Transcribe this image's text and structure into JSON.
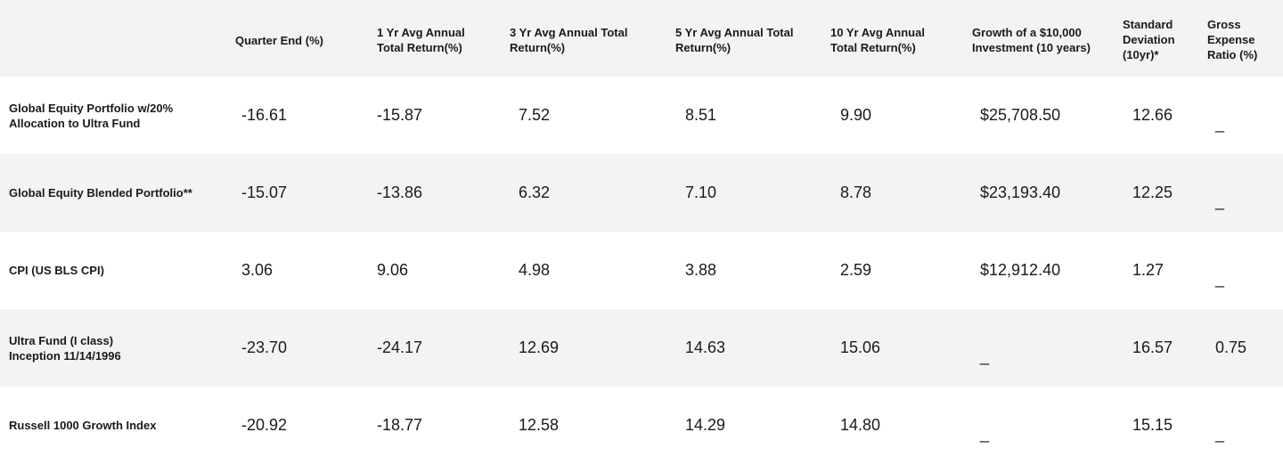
{
  "headers": [
    "Quarter End (%)",
    "1 Yr Avg Annual\nTotal Return(%)",
    "3 Yr Avg Annual Total\nReturn(%)",
    "5 Yr Avg Annual Total\nReturn(%)",
    "10 Yr Avg Annual\nTotal Return(%)",
    "Growth of a $10,000\nInvestment (10 years)",
    "Standard\nDeviation\n(10yr)*",
    "Gross\nExpense\nRatio (%)"
  ],
  "rows": [
    {
      "label_line1": "Global Equity Portfolio w/20%",
      "label_line2": "Allocation to Ultra Fund",
      "values": [
        "-16.61",
        "-15.87",
        "7.52",
        "8.51",
        "9.90",
        "$25,708.50",
        "12.66",
        "_"
      ]
    },
    {
      "label_line1": "Global Equity Blended Portfolio**",
      "label_line2": "",
      "values": [
        "-15.07",
        "-13.86",
        "6.32",
        "7.10",
        "8.78",
        "$23,193.40",
        "12.25",
        "_"
      ]
    },
    {
      "label_line1": "CPI (US BLS CPI)",
      "label_line2": "",
      "values": [
        "3.06",
        "9.06",
        "4.98",
        "3.88",
        "2.59",
        "$12,912.40",
        "1.27",
        "_"
      ]
    },
    {
      "label_line1": "Ultra Fund (I class)",
      "label_line2": "Inception 11/14/1996",
      "values": [
        "-23.70",
        "-24.17",
        "12.69",
        "14.63",
        "15.06",
        "_",
        "16.57",
        "0.75"
      ]
    },
    {
      "label_line1": "Russell 1000 Growth Index",
      "label_line2": "",
      "values": [
        "-20.92",
        "-18.77",
        "12.58",
        "14.29",
        "14.80",
        "_",
        "15.15",
        "_"
      ]
    }
  ]
}
